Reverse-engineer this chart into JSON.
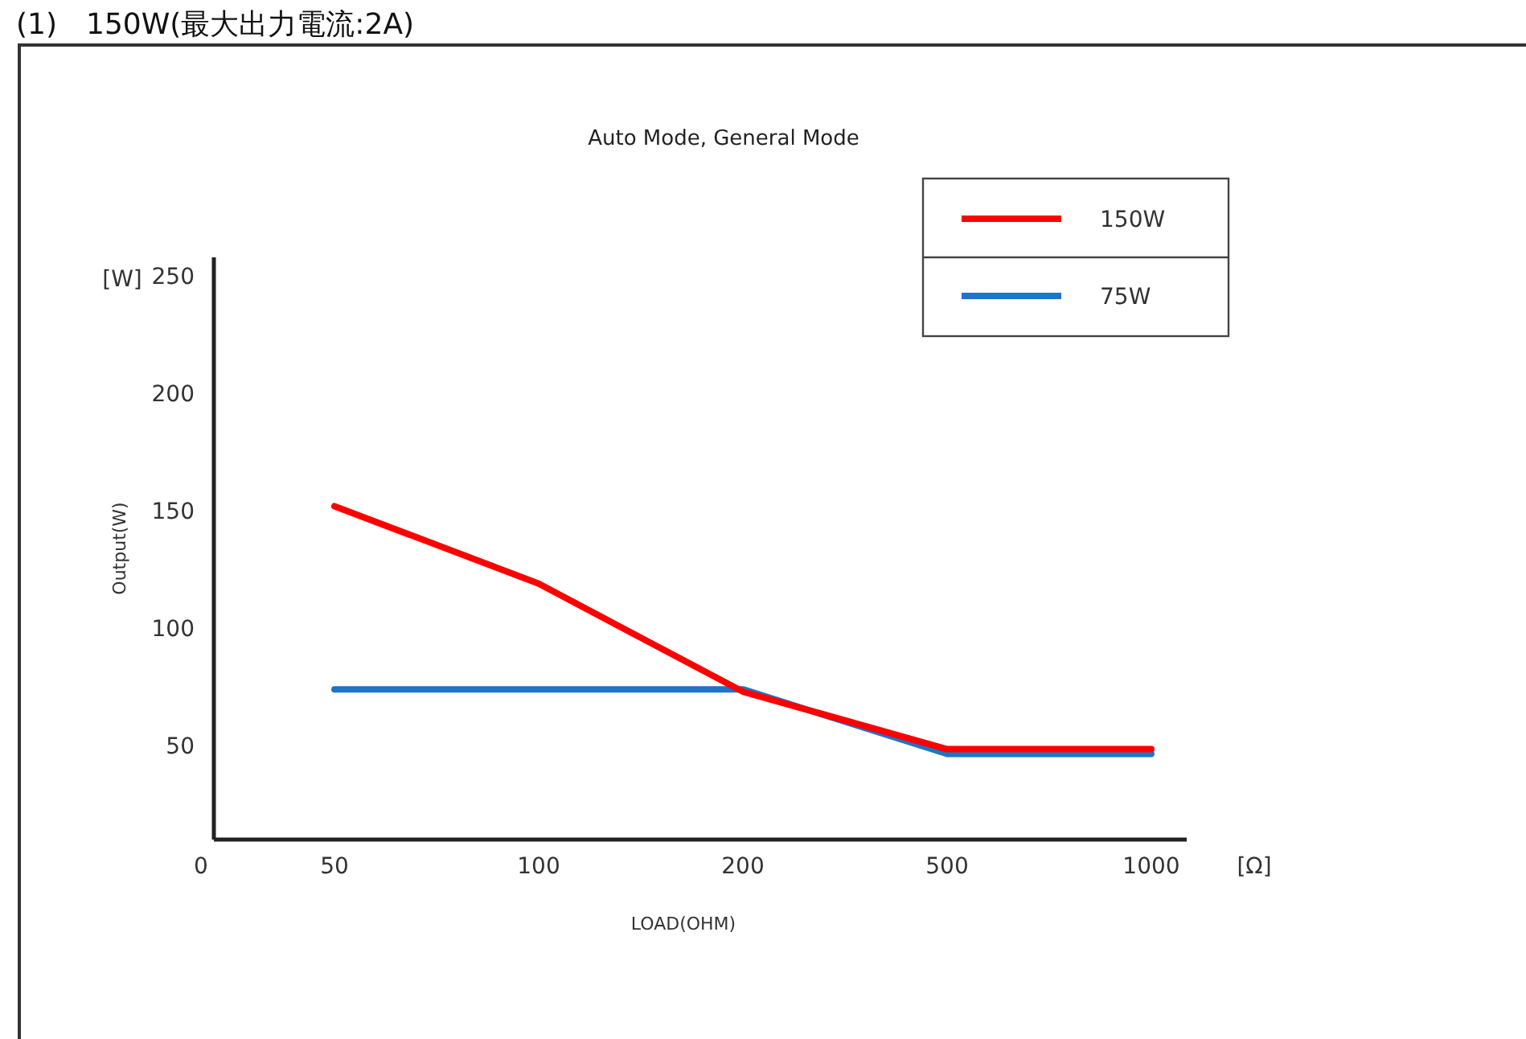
{
  "chart_data": {
    "type": "line",
    "title": "(1)　150W(最大出力電流:2A)",
    "subtitle": "Auto Mode, General Mode",
    "xlabel": "LOAD(OHM)",
    "ylabel": "Output(W)",
    "annotations": [
      "[W]",
      "[Ω]"
    ],
    "categories": [
      "0",
      "50",
      "100",
      "200",
      "500",
      "1000"
    ],
    "series": [
      {
        "name": "150W",
        "color": "#ff0000",
        "values": [
          null,
          152,
          119,
          73,
          48.5,
          48.5
        ]
      },
      {
        "name": "75W",
        "color": "#1f74c4",
        "values": [
          null,
          74,
          74,
          74,
          46.5,
          46.5
        ]
      }
    ],
    "ylim": [
      10,
      258
    ],
    "yticks": [
      50,
      100,
      150,
      200,
      250
    ],
    "legend": "top right",
    "grid": false,
    "marker": "none",
    "line_style": "solid"
  }
}
